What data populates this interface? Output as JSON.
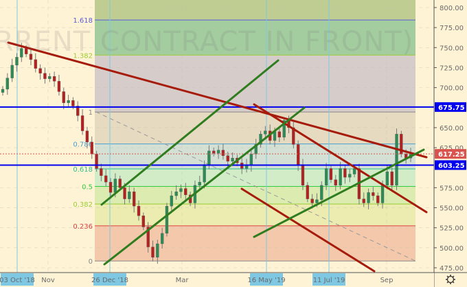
{
  "watermark": "RRENT CONTRACT IN FRONT)",
  "colors": {
    "background": "#fff3d6",
    "up": "#2e8b57",
    "down": "#b22222",
    "trend_red": "#a61b0b",
    "trend_green": "#2f7d1f",
    "hline_blue": "#0000ee",
    "current_price": "#d9534f"
  },
  "chart_data": {
    "type": "candlestick",
    "yaxis": {
      "min": 475,
      "max": 800,
      "ticks": [
        "800.00",
        "775.00",
        "750.00",
        "725.00",
        "700.00",
        "650.00",
        "625.00",
        "575.00",
        "550.00",
        "525.00",
        "500.00",
        "475.00"
      ],
      "tick_values": [
        800,
        775,
        750,
        725,
        700,
        650,
        625,
        575,
        550,
        525,
        500,
        475
      ]
    },
    "xaxis": {
      "labels": [
        {
          "text": "03 Oct '18",
          "highlight": true
        },
        {
          "text": "Nov",
          "highlight": false
        },
        {
          "text": "26 Dec '18",
          "highlight": true
        },
        {
          "text": "Mar",
          "highlight": false
        },
        {
          "text": "16 May '19",
          "highlight": true
        },
        {
          "text": "11 Jul '19",
          "highlight": true
        },
        {
          "text": "Sep",
          "highlight": false
        }
      ]
    },
    "closes": [
      698,
      712,
      728,
      738,
      749,
      742,
      735,
      724,
      718,
      711,
      714,
      708,
      695,
      681,
      684,
      677,
      665,
      646,
      632,
      617,
      599,
      590,
      582,
      569,
      586,
      575,
      561,
      570,
      552,
      540,
      526,
      501,
      488,
      505,
      518,
      552,
      565,
      570,
      574,
      566,
      556,
      578,
      582,
      604,
      621,
      618,
      622,
      615,
      608,
      612,
      606,
      599,
      603,
      617,
      629,
      642,
      646,
      634,
      645,
      638,
      659,
      650,
      629,
      604,
      578,
      561,
      556,
      560,
      578,
      599,
      585,
      578,
      599,
      588,
      592,
      599,
      561,
      556,
      569,
      565,
      556,
      578,
      595,
      578,
      642,
      617,
      612,
      617
    ],
    "fibonacci": [
      {
        "level": "1.618",
        "price": 784.5,
        "color": "#5b5bd6"
      },
      {
        "level": "1.382",
        "price": 740.6,
        "color": "#9acd32"
      },
      {
        "level": "1",
        "price": 669.6,
        "color": "#888888"
      },
      {
        "level": "0.786",
        "price": 629.7,
        "color": "#4a9fd0"
      },
      {
        "level": "0.618",
        "price": 598.5,
        "color": "#2fbf8f"
      },
      {
        "level": "0.5",
        "price": 576.6,
        "color": "#2ecc40"
      },
      {
        "level": "0.382",
        "price": 554.6,
        "color": "#9acd32"
      },
      {
        "level": "0.236",
        "price": 527.4,
        "color": "#e04040"
      },
      {
        "level": "0",
        "price": 483.5,
        "color": "#888888"
      }
    ],
    "fib_zone_colors": [
      "#bfcc92",
      "#a3cc9f",
      "#d6ccc9",
      "#e6dac0",
      "#d3e0d3",
      "#d2ecc8",
      "#dcebb0",
      "#ecebb0",
      "#f4c8aa"
    ],
    "price_labels": [
      {
        "text": "675.75",
        "price": 675.75,
        "color": "#0000ee"
      },
      {
        "text": "617.25",
        "price": 617.25,
        "color": "#d9534f"
      },
      {
        "text": "603.25",
        "price": 603.25,
        "color": "#0000ee"
      }
    ],
    "settings_icon": "gear-icon"
  }
}
